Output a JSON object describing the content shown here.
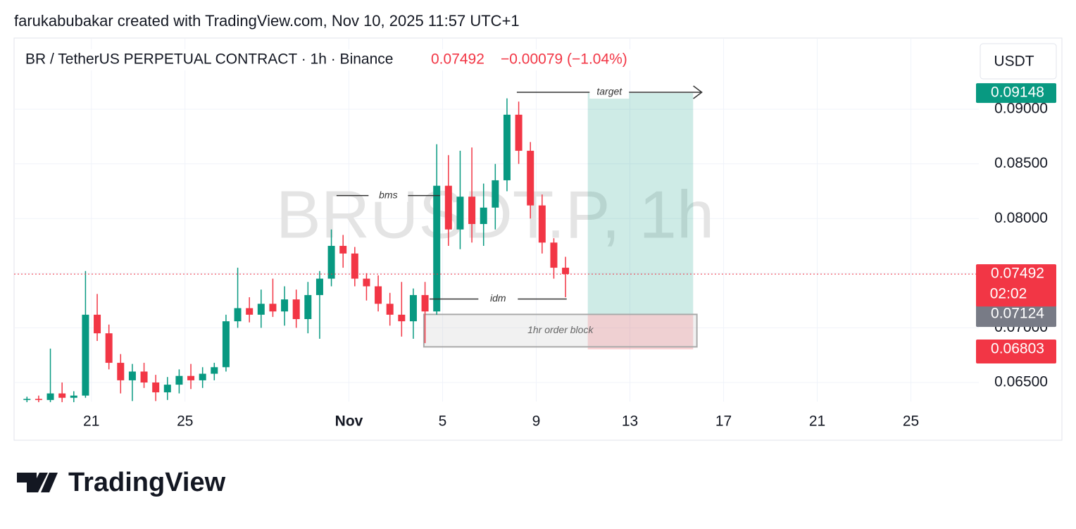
{
  "header": {
    "credit": "farukabubakar created with TradingView.com, Nov 10, 2025 11:57 UTC+1"
  },
  "footer": {
    "brand": "TradingView"
  },
  "chart_data": {
    "type": "candlestick",
    "title": "BR / TetherUS PERPETUAL CONTRACT · 1h · Binance",
    "change": "−0.00079 (−1.04%)",
    "watermark": "BRUSDT.P, 1h",
    "currency": "USDT",
    "countdown": "02:02",
    "last_price": 0.07492,
    "colors": {
      "up": "#089981",
      "down": "#f23645"
    },
    "grid": true,
    "xlim": [
      17.7,
      58.9
    ],
    "xticks": [
      {
        "value": 21,
        "label": "21"
      },
      {
        "value": 25,
        "label": "25"
      },
      {
        "value": 32,
        "label": "Nov"
      },
      {
        "value": 36,
        "label": "5"
      },
      {
        "value": 40,
        "label": "9"
      },
      {
        "value": 44,
        "label": "13"
      },
      {
        "value": 48,
        "label": "17"
      },
      {
        "value": 52,
        "label": "21"
      },
      {
        "value": 56,
        "label": "25"
      }
    ],
    "ylim": [
      0.06326,
      0.09645
    ],
    "yticks": [
      {
        "value": 0.065,
        "label": "0.06500"
      },
      {
        "value": 0.07,
        "label": "0.07000"
      },
      {
        "value": 0.075,
        "label": "0.07500"
      },
      {
        "value": 0.08,
        "label": "0.08000"
      },
      {
        "value": 0.085,
        "label": "0.08500"
      },
      {
        "value": 0.09,
        "label": "0.09000"
      }
    ],
    "x": [
      18.25,
      18.75,
      19.25,
      19.75,
      20.25,
      20.75,
      21.25,
      21.75,
      22.25,
      22.75,
      23.25,
      23.75,
      24.25,
      24.75,
      25.25,
      25.75,
      26.25,
      26.75,
      27.25,
      27.75,
      28.25,
      28.75,
      29.25,
      29.75,
      30.25,
      30.75,
      31.25,
      31.75,
      32.25,
      32.75,
      33.25,
      33.75,
      34.25,
      34.75,
      35.25,
      35.75,
      36.25,
      36.75,
      37.25,
      37.75,
      38.25,
      38.75,
      39.25,
      39.75,
      40.25,
      40.75,
      41.25
    ],
    "open": [
      0.0634,
      0.0635,
      0.0634,
      0.064,
      0.0636,
      0.0638,
      0.0712,
      0.0695,
      0.0668,
      0.0652,
      0.066,
      0.065,
      0.0641,
      0.0648,
      0.0656,
      0.0652,
      0.0658,
      0.0664,
      0.0706,
      0.0718,
      0.0712,
      0.0722,
      0.0715,
      0.0726,
      0.0708,
      0.073,
      0.0745,
      0.0775,
      0.0768,
      0.0745,
      0.0738,
      0.0722,
      0.0712,
      0.0706,
      0.073,
      0.0715,
      0.083,
      0.079,
      0.082,
      0.0795,
      0.081,
      0.0835,
      0.0895,
      0.0862,
      0.0812,
      0.0778,
      0.0755
    ],
    "high": [
      0.0637,
      0.0638,
      0.0681,
      0.065,
      0.0642,
      0.0752,
      0.0731,
      0.0703,
      0.0676,
      0.0667,
      0.0668,
      0.0657,
      0.0655,
      0.0662,
      0.0667,
      0.0664,
      0.0668,
      0.0712,
      0.0755,
      0.0728,
      0.0735,
      0.0745,
      0.0738,
      0.0735,
      0.0742,
      0.0752,
      0.079,
      0.0785,
      0.0774,
      0.075,
      0.0748,
      0.0732,
      0.0742,
      0.0736,
      0.0742,
      0.0868,
      0.0858,
      0.0862,
      0.0865,
      0.0832,
      0.085,
      0.091,
      0.0907,
      0.087,
      0.0822,
      0.0782,
      0.0765
    ],
    "low": [
      0.0632,
      0.0632,
      0.0632,
      0.0632,
      0.0632,
      0.0636,
      0.0688,
      0.0662,
      0.064,
      0.0633,
      0.0645,
      0.0633,
      0.0634,
      0.064,
      0.0644,
      0.0645,
      0.0652,
      0.066,
      0.07,
      0.0705,
      0.07,
      0.071,
      0.0702,
      0.07,
      0.0695,
      0.069,
      0.0738,
      0.0755,
      0.0738,
      0.0725,
      0.0715,
      0.0702,
      0.0692,
      0.069,
      0.0686,
      0.0712,
      0.0775,
      0.0772,
      0.0778,
      0.0775,
      0.079,
      0.0825,
      0.085,
      0.08,
      0.0768,
      0.0745,
      0.0728
    ],
    "close": [
      0.0635,
      0.0634,
      0.064,
      0.0636,
      0.0638,
      0.0712,
      0.0695,
      0.0668,
      0.0652,
      0.066,
      0.065,
      0.0641,
      0.0648,
      0.0656,
      0.0652,
      0.0658,
      0.0664,
      0.0706,
      0.0718,
      0.0712,
      0.0722,
      0.0715,
      0.0726,
      0.0708,
      0.073,
      0.0745,
      0.0775,
      0.0768,
      0.0745,
      0.0738,
      0.0722,
      0.0712,
      0.0706,
      0.073,
      0.0715,
      0.083,
      0.079,
      0.082,
      0.0795,
      0.081,
      0.0835,
      0.0895,
      0.0862,
      0.0812,
      0.0778,
      0.0755,
      0.07492
    ],
    "position": {
      "x": [
        42.2,
        46.7
      ],
      "target": 0.09148,
      "entry": 0.07124,
      "stop": 0.06803
    },
    "annotations": [
      {
        "text": "bms",
        "x": [
          31.47,
          35.89
        ],
        "y": 0.0821
      },
      {
        "text": "idm",
        "x": [
          35.44,
          41.3
        ],
        "y": 0.07264
      },
      {
        "text": "target",
        "x": [
          39.17,
          47.07
        ],
        "y": 0.09155
      }
    ],
    "order_block": {
      "text": "1hr order block",
      "x": [
        35.2,
        46.86
      ],
      "y": [
        0.07123,
        0.06826
      ]
    }
  }
}
